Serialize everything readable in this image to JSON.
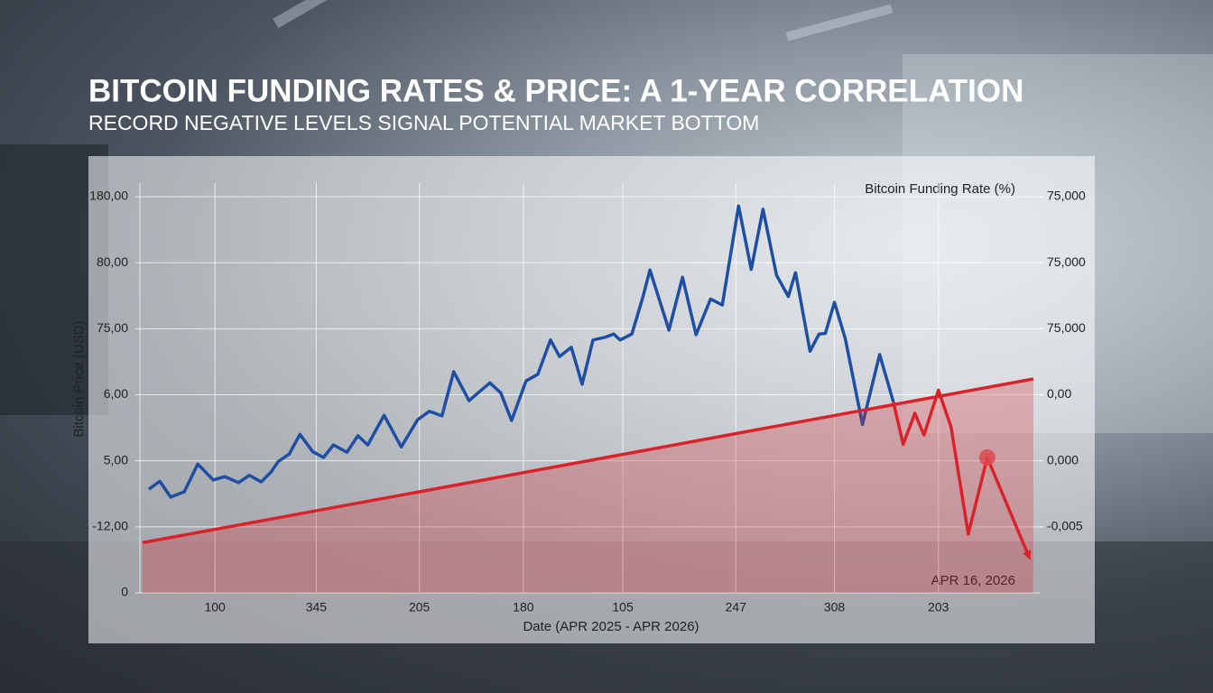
{
  "chart_data": {
    "type": "line",
    "title": "BITCOIN FUNDING RATES & PRICE: A 1-YEAR CORRELATION",
    "subtitle": "RECORD NEGATIVE LEVELS SIGNAL POTENTIAL MARKET BOTTOM",
    "x_label": "Date (APR 2025 - APR 2026)",
    "y_label": "Bitcoin Price (USD)",
    "y2_label": "Bitcoin Funding Rate (%)",
    "annotation": "APR 16, 2026",
    "xlim": [
      0,
      100
    ],
    "ylim": [
      0,
      6
    ],
    "y2lim": [
      0,
      6
    ],
    "grid": true,
    "xticks": [
      {
        "value": 8.8,
        "label": "100"
      },
      {
        "value": 20,
        "label": "345"
      },
      {
        "value": 31.4,
        "label": "205"
      },
      {
        "value": 42.9,
        "label": "180"
      },
      {
        "value": 53.9,
        "label": "105"
      },
      {
        "value": 66.4,
        "label": "247"
      },
      {
        "value": 77.3,
        "label": "308"
      },
      {
        "value": 88.8,
        "label": "203"
      }
    ],
    "yticks": [
      0,
      {
        "value": 1,
        "label": "-12,00"
      },
      {
        "value": 2,
        "label": "5,00"
      },
      {
        "value": 3,
        "label": "6,00"
      },
      {
        "value": 4,
        "label": "75,00"
      },
      {
        "value": 5,
        "label": "80,00"
      },
      {
        "value": 6,
        "label": "180,00"
      }
    ],
    "y2ticks": [
      {
        "value": 1,
        "label": "-0,005"
      },
      {
        "value": 2,
        "label": "0,000"
      },
      {
        "value": 3,
        "label": "0,00"
      },
      {
        "value": 4,
        "label": "75,000"
      },
      {
        "value": 5,
        "label": "75,000"
      },
      {
        "value": 6,
        "label": "75,000"
      }
    ],
    "series": [
      {
        "color": "#1f4fa3",
        "x": [
          1.5,
          2.7,
          3.9,
          5.4,
          6.9,
          8.6,
          9.9,
          11.4,
          12.6,
          13.9,
          15.0,
          15.8,
          17.0,
          18.2,
          19.6,
          20.8,
          21.9,
          23.4,
          24.6,
          25.7,
          27.5,
          29.4,
          31.2,
          32.5,
          33.9,
          35.2,
          36.9,
          37.9,
          39.2,
          40.4,
          41.6,
          43.2,
          44.5,
          45.9,
          46.9,
          48.2,
          49.4,
          50.6,
          51.9,
          52.9,
          53.6,
          54.9,
          56.1,
          56.9,
          59.0,
          60.5,
          62.0,
          63.6,
          64.9,
          66.7,
          68.1,
          69.4,
          70.9,
          72.2,
          73.0,
          74.6,
          75.6,
          76.3,
          77.3,
          78.5,
          80.4,
          82.3,
          83.8
        ],
        "values": [
          1.57,
          1.69,
          1.45,
          1.53,
          1.95,
          1.71,
          1.76,
          1.67,
          1.78,
          1.68,
          1.83,
          1.99,
          2.1,
          2.4,
          2.14,
          2.05,
          2.24,
          2.13,
          2.38,
          2.24,
          2.69,
          2.21,
          2.62,
          2.75,
          2.68,
          3.35,
          2.91,
          3.03,
          3.18,
          3.03,
          2.61,
          3.21,
          3.31,
          3.83,
          3.58,
          3.72,
          3.16,
          3.83,
          3.87,
          3.92,
          3.83,
          3.92,
          4.47,
          4.89,
          3.98,
          4.78,
          3.91,
          4.45,
          4.36,
          5.86,
          4.9,
          5.81,
          4.81,
          4.49,
          4.85,
          3.66,
          3.92,
          3.93,
          4.4,
          3.85,
          2.55,
          3.61,
          2.9
        ]
      },
      {
        "name": "Bitcoin Funding Rate (%)",
        "color": "#d9232a",
        "axis": "y2",
        "fill_area": true,
        "x": [
          0.8,
          99.3
        ],
        "values": [
          0.76,
          3.24
        ]
      },
      {
        "color": "#d9232a",
        "axis": "y2",
        "arrow": true,
        "x": [
          83.8,
          84.9,
          86.2,
          87.2,
          88.8,
          90.2,
          92.1,
          94.2,
          98.8
        ],
        "values": [
          2.9,
          2.25,
          2.72,
          2.39,
          3.07,
          2.51,
          0.89,
          2.05,
          0.55
        ]
      }
    ]
  }
}
